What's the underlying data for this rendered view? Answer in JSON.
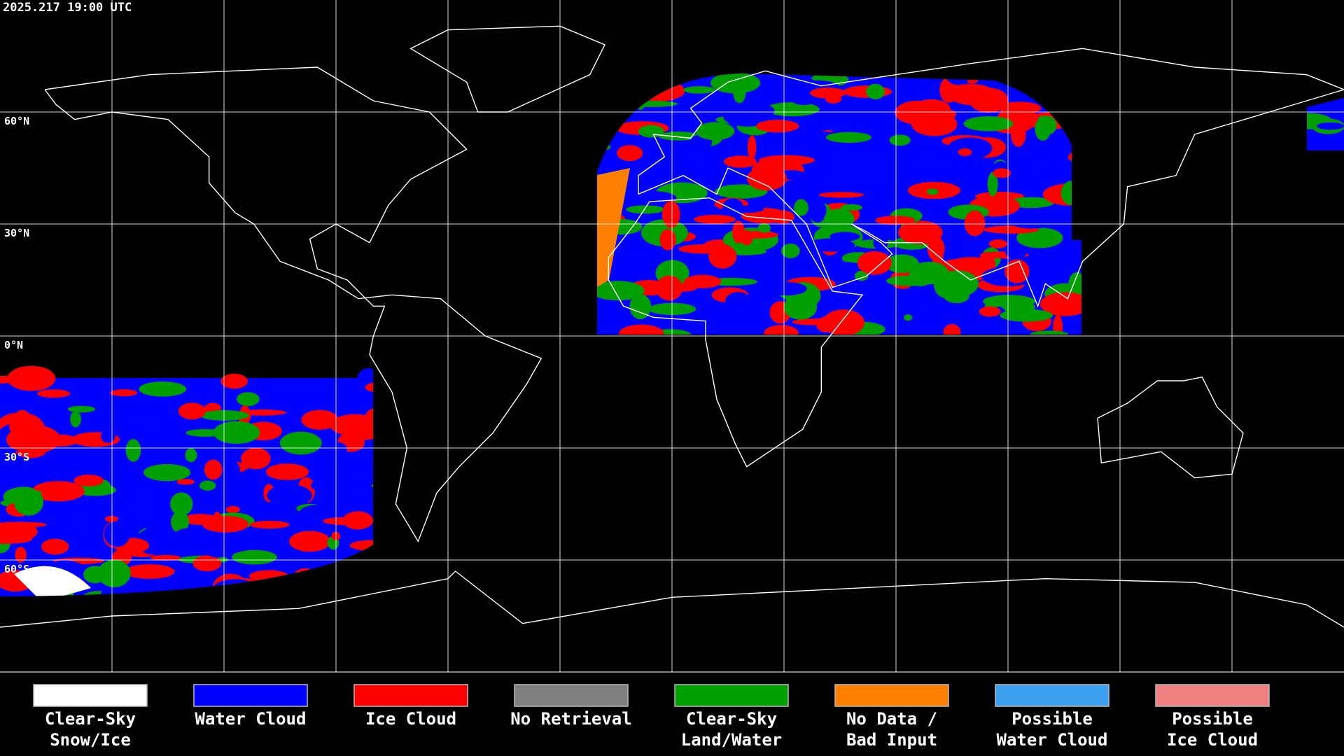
{
  "header": {
    "timestamp": "2025.217 19:00 UTC"
  },
  "latitude_labels": [
    "60°N",
    "30°N",
    "0°N",
    "30°S",
    "60°S"
  ],
  "legend": [
    {
      "lines": [
        "Clear-Sky",
        "Snow/Ice"
      ],
      "color": "#ffffff"
    },
    {
      "lines": [
        "Water Cloud"
      ],
      "color": "#0000ff"
    },
    {
      "lines": [
        "Ice Cloud"
      ],
      "color": "#ff0000"
    },
    {
      "lines": [
        "No Retrieval"
      ],
      "color": "#808080"
    },
    {
      "lines": [
        "Clear-Sky",
        "Land/Water"
      ],
      "color": "#00a000"
    },
    {
      "lines": [
        "No Data /",
        "Bad Input"
      ],
      "color": "#ff8000"
    },
    {
      "lines": [
        "Possible",
        "Water Cloud"
      ],
      "color": "#3ca0f0"
    },
    {
      "lines": [
        "Possible",
        "Ice Cloud"
      ],
      "color": "#f08080"
    }
  ]
}
